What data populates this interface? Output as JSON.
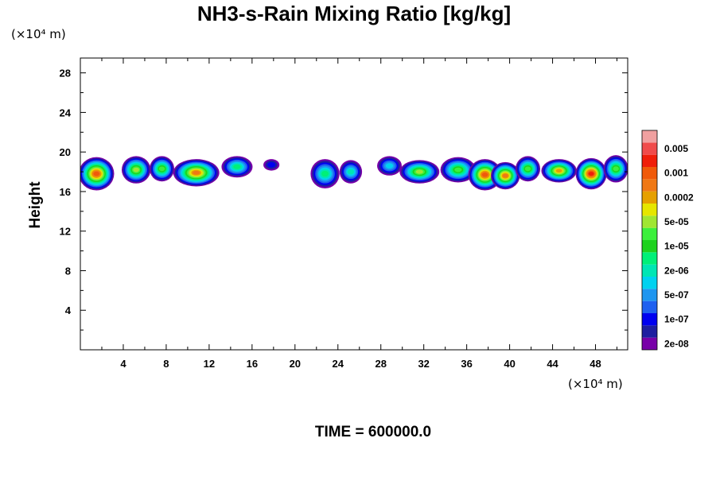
{
  "title": "NH3-s-Rain Mixing Ratio [kg/kg]",
  "ylabel": "Height",
  "y_unit": "(×10⁴ m)",
  "x_unit": "(×10⁴ m)",
  "time_label": "TIME = 600000.0",
  "chart_data": {
    "type": "heatmap",
    "title": "NH3-s-Rain Mixing Ratio [kg/kg]",
    "xlabel": "",
    "ylabel": "Height",
    "xlim": [
      0,
      51
    ],
    "ylim": [
      0,
      29.5
    ],
    "x_ticks": [
      4,
      8,
      12,
      16,
      20,
      24,
      28,
      32,
      36,
      40,
      44,
      48
    ],
    "y_ticks": [
      4,
      8,
      12,
      16,
      20,
      24,
      28
    ],
    "grid": false,
    "colorbar": {
      "placement": "right",
      "levels_bottom_to_top": [
        {
          "color": "#7800a8",
          "label": "2e-08"
        },
        {
          "color": "#1e1ea0",
          "label": ""
        },
        {
          "color": "#0000f0",
          "label": "1e-07"
        },
        {
          "color": "#1e60f0",
          "label": ""
        },
        {
          "color": "#1e96f0",
          "label": "5e-07"
        },
        {
          "color": "#00d2f0",
          "label": ""
        },
        {
          "color": "#00e6b4",
          "label": "2e-06"
        },
        {
          "color": "#00f078",
          "label": ""
        },
        {
          "color": "#1ed21e",
          "label": "1e-05"
        },
        {
          "color": "#3cf03c",
          "label": ""
        },
        {
          "color": "#a0e632",
          "label": "5e-05"
        },
        {
          "color": "#e6e600",
          "label": ""
        },
        {
          "color": "#e6a000",
          "label": "0.0002"
        },
        {
          "color": "#f07814",
          "label": ""
        },
        {
          "color": "#f05a0a",
          "label": "0.001"
        },
        {
          "color": "#f01e0a",
          "label": ""
        },
        {
          "color": "#f04b4b",
          "label": "0.005"
        },
        {
          "color": "#f0a0a0",
          "label": ""
        }
      ]
    },
    "cells": [
      {
        "x": 1.5,
        "y": 17.8,
        "rx": 1.5,
        "ry": 1.6,
        "level": 14
      },
      {
        "x": 5.2,
        "y": 18.2,
        "rx": 1.2,
        "ry": 1.3,
        "level": 10
      },
      {
        "x": 7.6,
        "y": 18.3,
        "rx": 1.0,
        "ry": 1.2,
        "level": 9
      },
      {
        "x": 10.8,
        "y": 17.9,
        "rx": 2.0,
        "ry": 1.3,
        "level": 13
      },
      {
        "x": 14.6,
        "y": 18.5,
        "rx": 1.3,
        "ry": 1.0,
        "level": 7
      },
      {
        "x": 17.8,
        "y": 18.7,
        "rx": 0.6,
        "ry": 0.5,
        "level": 2
      },
      {
        "x": 22.8,
        "y": 17.8,
        "rx": 1.2,
        "ry": 1.4,
        "level": 7
      },
      {
        "x": 25.2,
        "y": 18.0,
        "rx": 0.9,
        "ry": 1.1,
        "level": 6
      },
      {
        "x": 28.8,
        "y": 18.6,
        "rx": 1.0,
        "ry": 0.9,
        "level": 5
      },
      {
        "x": 31.6,
        "y": 18.0,
        "rx": 1.7,
        "ry": 1.1,
        "level": 10
      },
      {
        "x": 35.2,
        "y": 18.2,
        "rx": 1.5,
        "ry": 1.2,
        "level": 9
      },
      {
        "x": 37.7,
        "y": 17.7,
        "rx": 1.4,
        "ry": 1.5,
        "level": 14
      },
      {
        "x": 39.6,
        "y": 17.6,
        "rx": 1.2,
        "ry": 1.3,
        "level": 13
      },
      {
        "x": 41.7,
        "y": 18.3,
        "rx": 1.0,
        "ry": 1.2,
        "level": 9
      },
      {
        "x": 44.6,
        "y": 18.1,
        "rx": 1.5,
        "ry": 1.1,
        "level": 12
      },
      {
        "x": 47.6,
        "y": 17.8,
        "rx": 1.3,
        "ry": 1.5,
        "level": 15
      },
      {
        "x": 49.9,
        "y": 18.3,
        "rx": 1.0,
        "ry": 1.3,
        "level": 9
      }
    ]
  }
}
